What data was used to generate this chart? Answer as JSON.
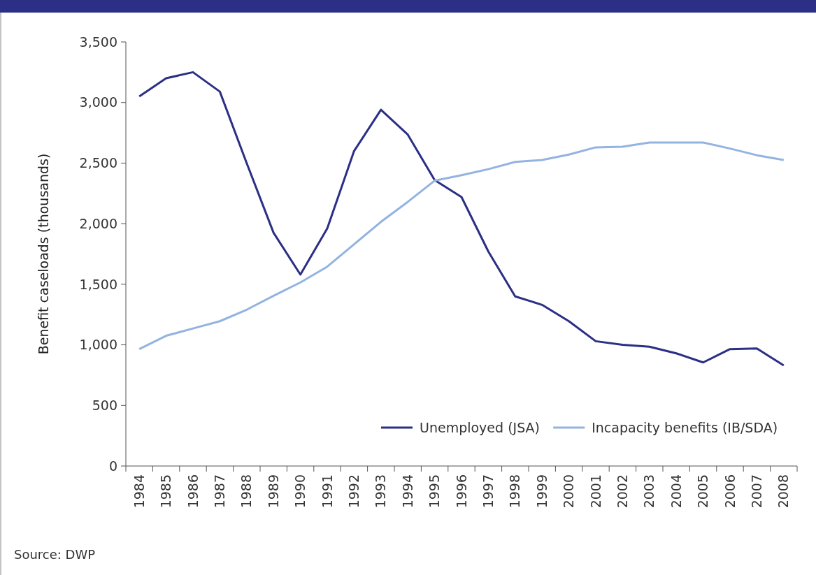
{
  "chart_data": {
    "type": "line",
    "ylabel": "Benefit caseloads (thousands)",
    "categories": [
      "1984",
      "1985",
      "1986",
      "1987",
      "1988",
      "1989",
      "1990",
      "1991",
      "1992",
      "1993",
      "1994",
      "1995",
      "1996",
      "1997",
      "1998",
      "1999",
      "2000",
      "2001",
      "2002",
      "2003",
      "2004",
      "2005",
      "2006",
      "2007",
      "2008"
    ],
    "series": [
      {
        "name": "Unemployed (JSA)",
        "color": "#2b2f85",
        "values": [
          3050,
          3200,
          3250,
          3090,
          2500,
          1925,
          1580,
          1960,
          2600,
          2940,
          2735,
          2360,
          2220,
          1770,
          1400,
          1330,
          1195,
          1030,
          1000,
          985,
          930,
          855,
          965,
          970,
          830
        ]
      },
      {
        "name": "Incapacity benefits (IB/SDA)",
        "color": "#93b3e0",
        "values": [
          965,
          1075,
          1135,
          1195,
          1290,
          1405,
          1515,
          1645,
          1830,
          2015,
          2180,
          2355,
          2400,
          2450,
          2510,
          2525,
          2570,
          2630,
          2635,
          2670,
          2670,
          2670,
          2620,
          2565,
          2525
        ]
      }
    ],
    "ylim": [
      0,
      3500
    ],
    "yticks": [
      {
        "value": 0,
        "label": "0"
      },
      {
        "value": 500,
        "label": "500"
      },
      {
        "value": 1000,
        "label": "1,000"
      },
      {
        "value": 1500,
        "label": "1,500"
      },
      {
        "value": 2000,
        "label": "2,000"
      },
      {
        "value": 2500,
        "label": "2,500"
      },
      {
        "value": 3000,
        "label": "3,000"
      },
      {
        "value": 3500,
        "label": "3,500"
      }
    ],
    "legend": "bottom right",
    "annotations": [
      "Source: DWP"
    ]
  }
}
